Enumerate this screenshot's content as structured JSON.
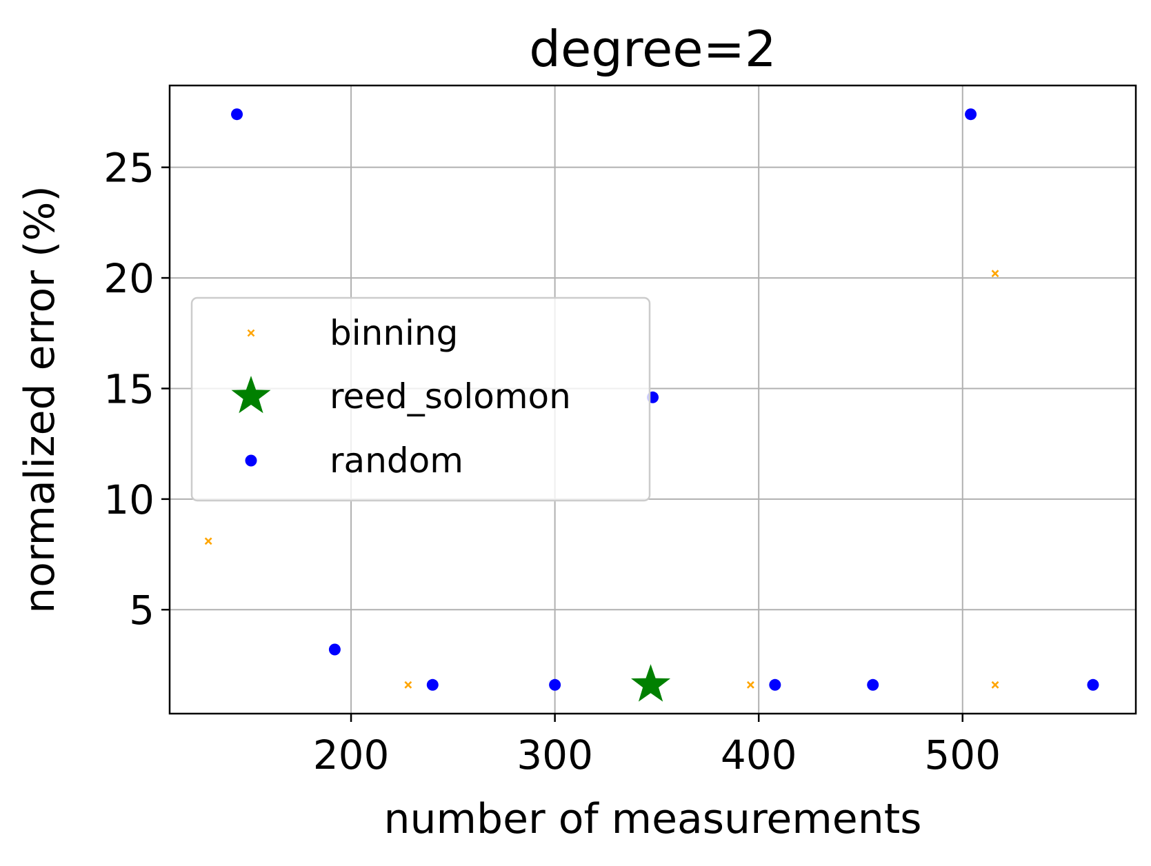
{
  "chart_data": {
    "type": "scatter",
    "title": "degree=2",
    "xlabel": "number of measurements",
    "ylabel": "normalized error (%)",
    "xlim": [
      111,
      585
    ],
    "ylim": [
      0.3,
      28.7
    ],
    "grid": true,
    "legend_position": "center-left",
    "x_ticks": [
      200,
      300,
      400,
      500
    ],
    "y_ticks": [
      5,
      10,
      15,
      20,
      25
    ],
    "series": [
      {
        "name": "binning",
        "marker": "x",
        "color": "#ffa500",
        "x": [
          130,
          228,
          396,
          516,
          516
        ],
        "y": [
          8.1,
          1.6,
          1.6,
          1.6,
          20.2
        ]
      },
      {
        "name": "reed_solomon",
        "marker": "star",
        "color": "#008000",
        "x": [
          347
        ],
        "y": [
          1.6
        ]
      },
      {
        "name": "random",
        "marker": "dot",
        "color": "#0000ff",
        "x": [
          144,
          192,
          240,
          300,
          348,
          408,
          456,
          504,
          564
        ],
        "y": [
          27.4,
          3.2,
          1.6,
          1.6,
          14.6,
          1.6,
          1.6,
          27.4,
          1.6
        ]
      }
    ]
  }
}
